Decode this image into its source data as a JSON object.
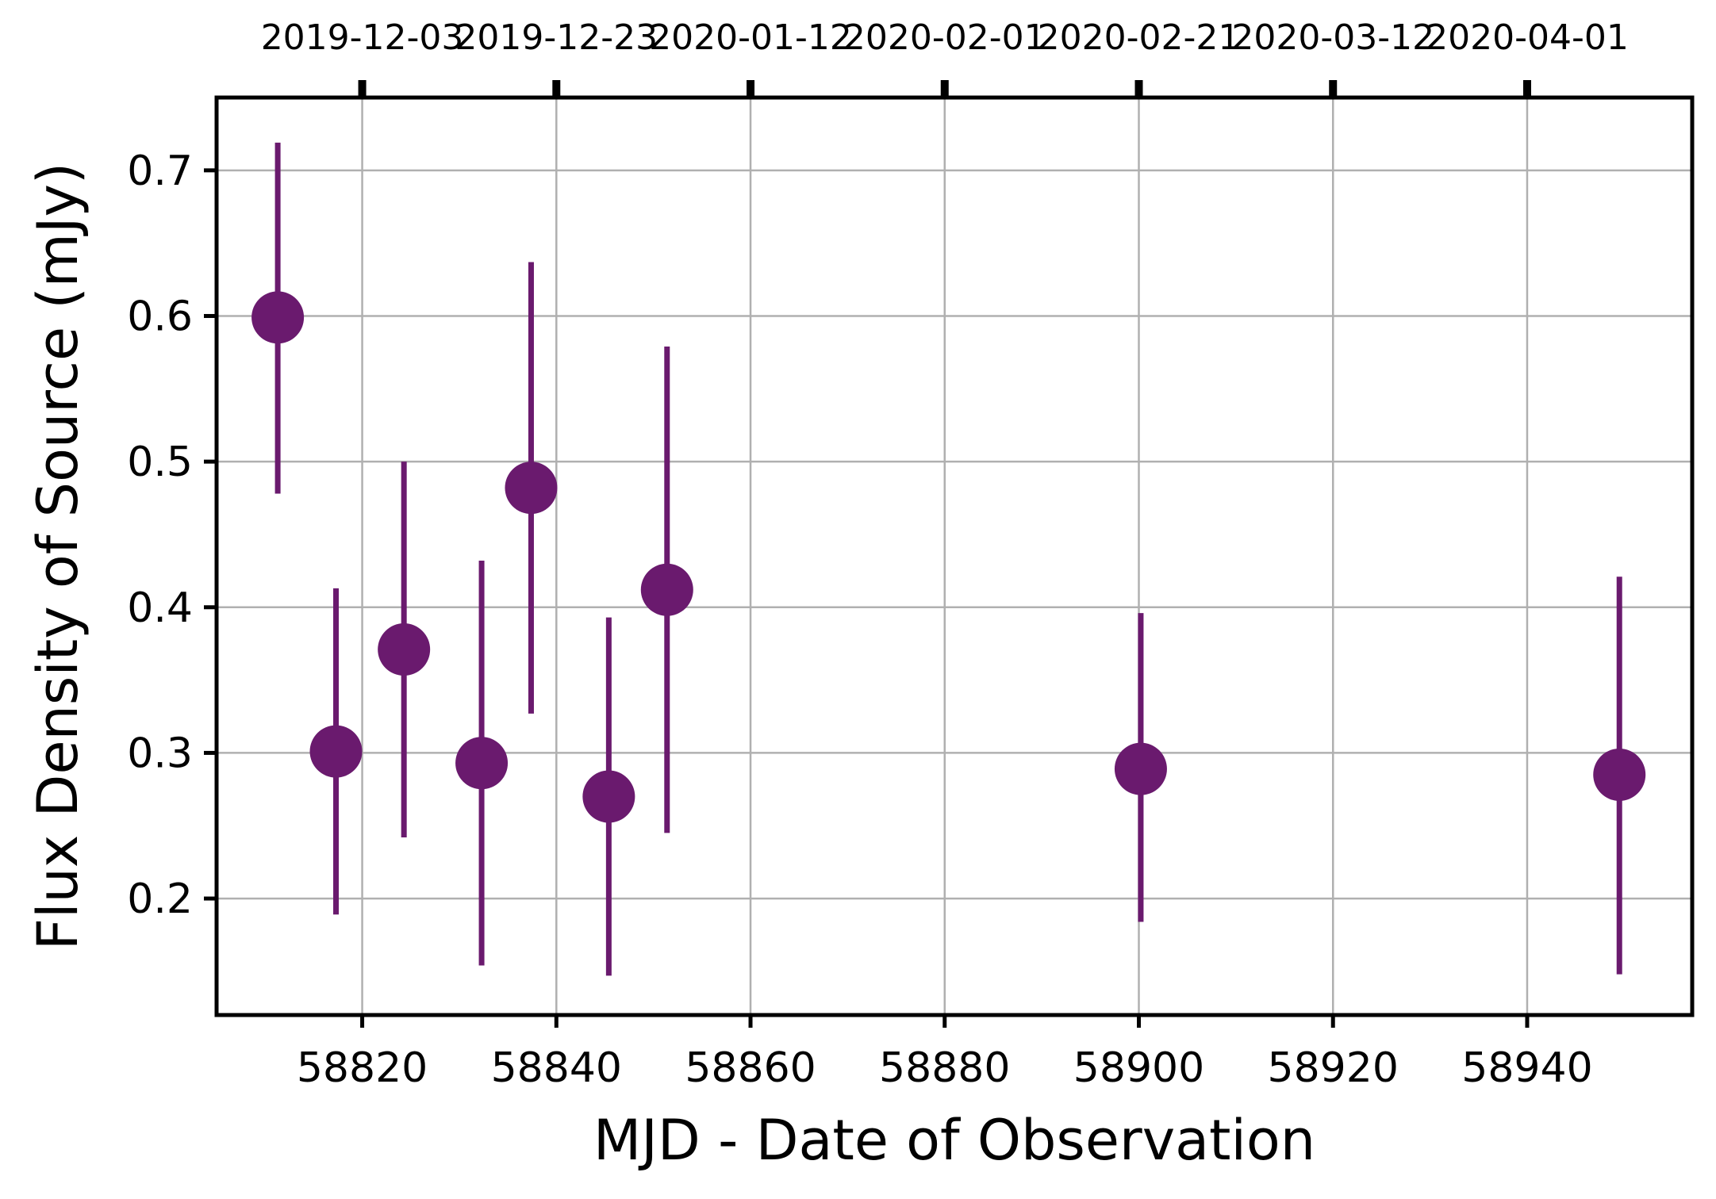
{
  "chart_data": {
    "type": "scatter",
    "xlabel": "MJD - Date of Observation",
    "ylabel": "Flux Density of Source (mJy)",
    "xlim": [
      58805,
      58957
    ],
    "ylim": [
      0.12,
      0.75
    ],
    "grid": true,
    "x_ticks": [
      58820,
      58840,
      58860,
      58880,
      58900,
      58920,
      58940
    ],
    "x_tick_labels": [
      "58820",
      "58840",
      "58860",
      "58880",
      "58900",
      "58920",
      "58940"
    ],
    "y_ticks": [
      0.2,
      0.3,
      0.4,
      0.5,
      0.6,
      0.7
    ],
    "y_tick_labels": [
      "0.2",
      "0.3",
      "0.4",
      "0.5",
      "0.6",
      "0.7"
    ],
    "top_axis_labels": [
      "2019-12-03",
      "2019-12-23",
      "2020-01-12",
      "2020-02-01",
      "2020-02-21",
      "2020-03-12",
      "2020-04-01"
    ],
    "series": [
      {
        "color": "#6a1a6e",
        "points": [
          {
            "x": 58811.3,
            "y": 0.599,
            "yerr_low": 0.478,
            "yerr_high": 0.719
          },
          {
            "x": 58817.3,
            "y": 0.301,
            "yerr_low": 0.189,
            "yerr_high": 0.413
          },
          {
            "x": 58824.3,
            "y": 0.371,
            "yerr_low": 0.242,
            "yerr_high": 0.5
          },
          {
            "x": 58832.3,
            "y": 0.293,
            "yerr_low": 0.154,
            "yerr_high": 0.432
          },
          {
            "x": 58837.4,
            "y": 0.482,
            "yerr_low": 0.327,
            "yerr_high": 0.637
          },
          {
            "x": 58845.4,
            "y": 0.27,
            "yerr_low": 0.147,
            "yerr_high": 0.393
          },
          {
            "x": 58851.4,
            "y": 0.412,
            "yerr_low": 0.245,
            "yerr_high": 0.579
          },
          {
            "x": 58900.2,
            "y": 0.289,
            "yerr_low": 0.184,
            "yerr_high": 0.396
          },
          {
            "x": 58949.5,
            "y": 0.285,
            "yerr_low": 0.148,
            "yerr_high": 0.421
          }
        ]
      }
    ]
  }
}
